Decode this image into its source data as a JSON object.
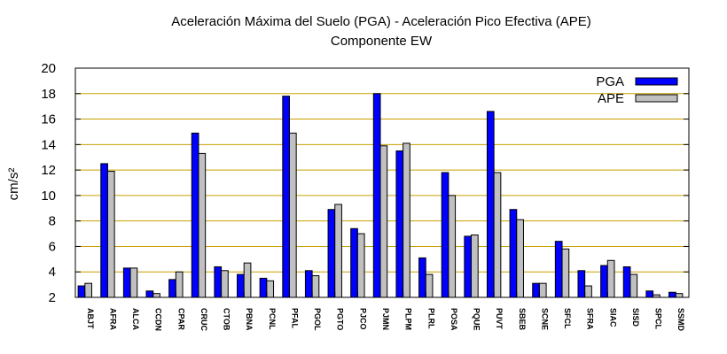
{
  "chart_data": {
    "type": "bar",
    "title": "Aceleración Máxima del Suelo (PGA) -  Aceleración Pico Efectiva (APE)",
    "subtitle": "Componente EW",
    "ylabel": "cm/s²",
    "xlabel": "",
    "ylim": [
      2,
      20
    ],
    "yticks": [
      2,
      4,
      6,
      8,
      10,
      12,
      14,
      16,
      18,
      20
    ],
    "grid": "horizontal",
    "legend_position": "top-right",
    "categories": [
      "ABJT",
      "AFRA",
      "ALCA",
      "CCDN",
      "CPAR",
      "CRUC",
      "CTOB",
      "PBNA",
      "PCNL",
      "PFAL",
      "PGOL",
      "PGTO",
      "PJCO",
      "PJMN",
      "PLPM",
      "PLRL",
      "POSA",
      "PQUE",
      "PUVT",
      "SBEB",
      "SCNE",
      "SFCL",
      "SFRA",
      "SIAC",
      "SISD",
      "SPCL",
      "SSMD"
    ],
    "series": [
      {
        "name": "PGA",
        "color": "#0000ff",
        "values": [
          2.9,
          12.5,
          4.3,
          2.5,
          3.4,
          14.9,
          4.4,
          3.8,
          3.5,
          17.8,
          4.1,
          8.9,
          7.4,
          18.0,
          13.5,
          5.1,
          11.8,
          6.8,
          16.6,
          8.9,
          3.1,
          6.4,
          4.1,
          4.5,
          4.4,
          2.5,
          2.4
        ]
      },
      {
        "name": "APE",
        "color": "#c0c0c0",
        "values": [
          3.1,
          11.9,
          4.3,
          2.3,
          4.0,
          13.3,
          4.1,
          4.7,
          3.3,
          14.9,
          3.7,
          9.3,
          7.0,
          13.9,
          14.1,
          3.8,
          10.0,
          6.9,
          11.8,
          8.1,
          3.1,
          5.8,
          2.9,
          4.9,
          3.8,
          2.2,
          2.3
        ]
      }
    ]
  }
}
